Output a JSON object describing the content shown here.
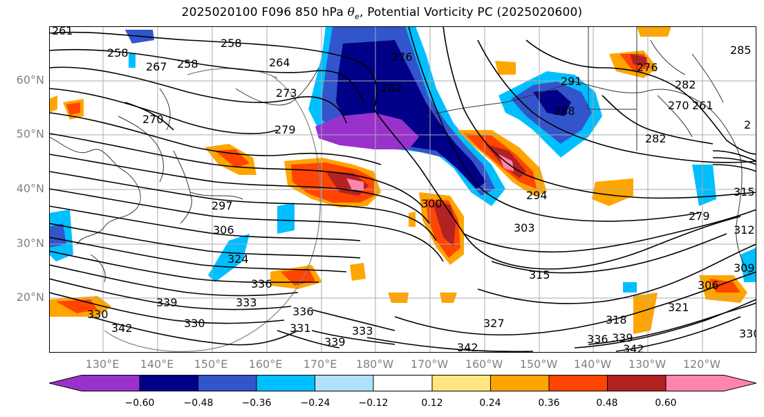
{
  "title": {
    "prefix": "2025020100 F096 850 hPa ",
    "theta": "θ",
    "theta_sub": "e",
    "suffix": ", Potential Vorticity PC (2025020600)"
  },
  "axes": {
    "lat_labels": [
      "60°N",
      "50°N",
      "40°N",
      "30°N",
      "20°N"
    ],
    "lon_labels": [
      "130°E",
      "140°E",
      "150°E",
      "160°E",
      "170°E",
      "180°W",
      "170°W",
      "160°W",
      "150°W",
      "140°W",
      "130°W",
      "120°W"
    ]
  },
  "colorbar": {
    "colors": [
      "#9932cc",
      "#000088",
      "#3355cc",
      "#00bfff",
      "#b0e0ff",
      "#ffffff",
      "#ffe680",
      "#ffa500",
      "#ff4500",
      "#b22222",
      "#ff85b0"
    ],
    "tick_labels": [
      "−0.60",
      "−0.48",
      "−0.36",
      "−0.24",
      "−0.12",
      "0.12",
      "0.24",
      "0.36",
      "0.48",
      "0.60"
    ]
  },
  "contour_labels": [
    "261",
    "258",
    "258",
    "267",
    "258",
    "264",
    "273",
    "279",
    "270",
    "282",
    "276",
    "291",
    "288",
    "276",
    "282",
    "270",
    "261",
    "282",
    "294",
    "300",
    "297",
    "306",
    "303",
    "315",
    "324",
    "336",
    "339",
    "330",
    "333",
    "336",
    "330",
    "342",
    "327",
    "331",
    "339",
    "333",
    "342",
    "318",
    "336",
    "339",
    "342",
    "321",
    "306",
    "330",
    "309",
    "312",
    "315",
    "279",
    "285",
    "2"
  ]
}
